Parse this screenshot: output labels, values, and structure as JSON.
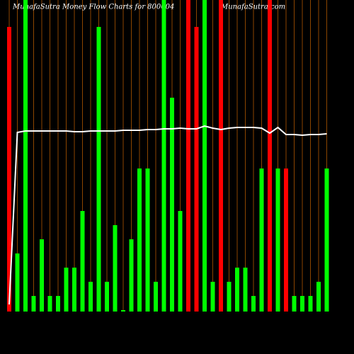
{
  "chart_data": {
    "type": "bar",
    "title": "MunafaSutra  Money Flow  Charts for 800604",
    "annotation": "MunafaSutra.com",
    "categories": [
      null,
      null,
      null,
      null,
      null,
      null,
      null,
      null,
      null,
      null,
      null,
      null,
      null,
      null,
      null,
      null,
      null,
      null,
      null,
      null,
      null,
      null,
      null,
      null,
      null,
      null,
      null,
      null,
      null,
      null,
      null,
      null,
      null,
      null,
      null,
      null,
      null,
      null,
      null,
      null
    ],
    "values": [
      402,
      82,
      440,
      22,
      102,
      22,
      22,
      62,
      62,
      142,
      42,
      402,
      42,
      122,
      2,
      102,
      202,
      202,
      42,
      440,
      302,
      142,
      440,
      402,
      440,
      42,
      440,
      42,
      62,
      62,
      22,
      202,
      440,
      202,
      202,
      22,
      22,
      22,
      42,
      202
    ],
    "colors": [
      "#ff0000",
      "#00ff00",
      "#00ff00",
      "#00ff00",
      "#00ff00",
      "#00ff00",
      "#00ff00",
      "#00ff00",
      "#00ff00",
      "#00ff00",
      "#00ff00",
      "#00ff00",
      "#00ff00",
      "#00ff00",
      "#00ff00",
      "#00ff00",
      "#00ff00",
      "#00ff00",
      "#00ff00",
      "#00ff00",
      "#00ff00",
      "#00ff00",
      "#ff0000",
      "#ff0000",
      "#00ff00",
      "#00ff00",
      "#ff0000",
      "#00ff00",
      "#00ff00",
      "#00ff00",
      "#00ff00",
      "#00ff00",
      "#ff0000",
      "#00ff00",
      "#ff0000",
      "#00ff00",
      "#00ff00",
      "#00ff00",
      "#00ff00",
      "#00ff00"
    ],
    "line": {
      "color": "#ffffff",
      "values": [
        10,
        253,
        255,
        255,
        255,
        255,
        255,
        255,
        254,
        254,
        255,
        255,
        255,
        255,
        256,
        256,
        256,
        257,
        257,
        258,
        258,
        259,
        258,
        258,
        262,
        259,
        257,
        259,
        260,
        260,
        260,
        259,
        252,
        260,
        250,
        250,
        249,
        250,
        250,
        251
      ]
    },
    "ylim": [
      0,
      440
    ]
  }
}
